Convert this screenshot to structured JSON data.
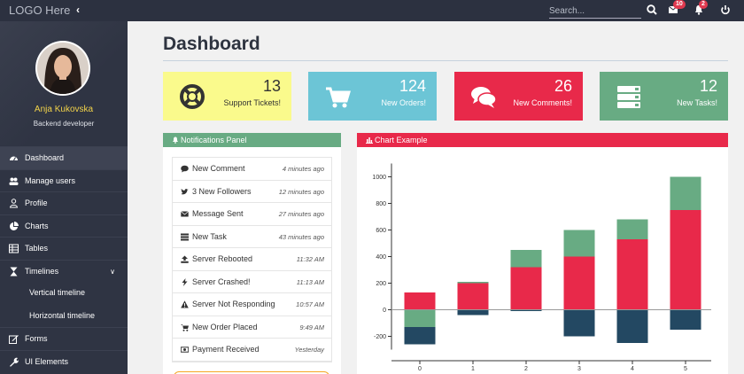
{
  "topbar": {
    "logo": "LOGO Here",
    "search_placeholder": "Search...",
    "mail_badge": "10",
    "bell_badge": "2"
  },
  "sidebar": {
    "user_name": "Anja Kukovska",
    "user_role": "Backend developer",
    "items": [
      {
        "label": "Dashboard",
        "icon": "dashboard-icon"
      },
      {
        "label": "Manage users",
        "icon": "users-icon"
      },
      {
        "label": "Profile",
        "icon": "user-icon"
      },
      {
        "label": "Charts",
        "icon": "chart-icon"
      },
      {
        "label": "Tables",
        "icon": "table-icon"
      },
      {
        "label": "Timelines",
        "icon": "hourglass-icon"
      },
      {
        "label": "Vertical timeline"
      },
      {
        "label": "Horizontal timeline"
      },
      {
        "label": "Forms",
        "icon": "edit-icon"
      },
      {
        "label": "UI Elements",
        "icon": "wrench-icon"
      }
    ]
  },
  "main": {
    "title": "Dashboard",
    "stats": [
      {
        "value": "13",
        "label": "Support Tickets!",
        "icon": "lifebuoy-icon",
        "color": "#fafa8c"
      },
      {
        "value": "124",
        "label": "New Orders!",
        "icon": "cart-icon",
        "color": "#6cc5d6"
      },
      {
        "value": "26",
        "label": "New Comments!",
        "icon": "comments-icon",
        "color": "#e8294a"
      },
      {
        "value": "12",
        "label": "New Tasks!",
        "icon": "tasks-icon",
        "color": "#68ab83"
      }
    ],
    "notifications": {
      "title": "Notifications Panel",
      "items": [
        {
          "text": "New Comment",
          "time": "4 minutes ago",
          "icon": "comment-icon"
        },
        {
          "text": "3 New Followers",
          "time": "12 minutes ago",
          "icon": "twitter-icon"
        },
        {
          "text": "Message Sent",
          "time": "27 minutes ago",
          "icon": "envelope-icon"
        },
        {
          "text": "New Task",
          "time": "43 minutes ago",
          "icon": "tasks-icon"
        },
        {
          "text": "Server Rebooted",
          "time": "11:32 AM",
          "icon": "upload-icon"
        },
        {
          "text": "Server Crashed!",
          "time": "11:13 AM",
          "icon": "bolt-icon"
        },
        {
          "text": "Server Not Responding",
          "time": "10:57 AM",
          "icon": "warning-icon"
        },
        {
          "text": "New Order Placed",
          "time": "9:49 AM",
          "icon": "cart-icon"
        },
        {
          "text": "Payment Received",
          "time": "Yesterday",
          "icon": "money-icon"
        }
      ]
    },
    "chart_panel": {
      "title": "Chart Example"
    }
  },
  "chart_data": {
    "type": "bar",
    "stacked": true,
    "categories": [
      "0",
      "1",
      "2",
      "3",
      "4",
      "5"
    ],
    "series": [
      {
        "color": "#e8294a",
        "values": [
          130,
          200,
          320,
          400,
          530,
          750
        ]
      },
      {
        "color": "#68ab83",
        "values": [
          -130,
          10,
          130,
          200,
          150,
          250
        ]
      },
      {
        "color": "#234862",
        "values": [
          -130,
          -40,
          -10,
          -200,
          -250,
          -150
        ]
      }
    ],
    "yticks": [
      -200,
      0,
      200,
      400,
      600,
      800,
      1000
    ],
    "ylim": [
      -300,
      1100
    ],
    "grid": false,
    "legend": "none"
  }
}
